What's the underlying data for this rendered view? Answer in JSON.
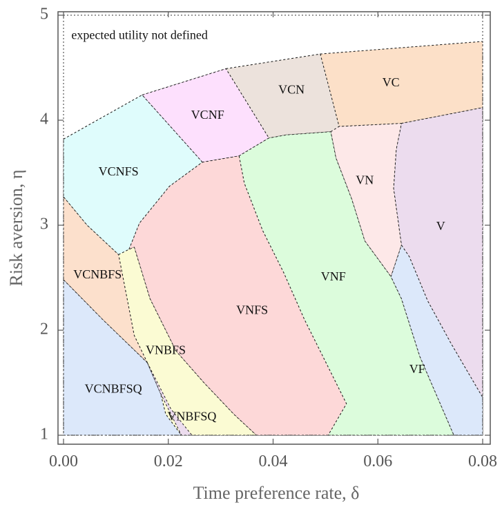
{
  "chart_data": {
    "type": "region-map",
    "xlabel": "Time preference rate, δ",
    "ylabel": "Risk aversion, η",
    "xlim": [
      0.0,
      0.08
    ],
    "ylim": [
      1,
      5
    ],
    "xticks": [
      "0.00",
      "0.02",
      "0.04",
      "0.06",
      "0.08"
    ],
    "yticks": [
      "1",
      "2",
      "3",
      "4",
      "5"
    ],
    "regions": [
      {
        "name": "expected utility not defined",
        "color": "#fdfbd3"
      },
      {
        "name": "VC",
        "color": "#fce0c8"
      },
      {
        "name": "VCN",
        "color": "#ece2dc"
      },
      {
        "name": "VCNF",
        "color": "#fde0fd"
      },
      {
        "name": "VCNFS",
        "color": "#dffcfc"
      },
      {
        "name": "V",
        "color": "#ecdcee"
      },
      {
        "name": "VN",
        "color": "#fde8e8"
      },
      {
        "name": "VNF",
        "color": "#dcfcdc"
      },
      {
        "name": "VNFS",
        "color": "#fdd8d8"
      },
      {
        "name": "VF",
        "color": "#dce8fa"
      },
      {
        "name": "VNBFS",
        "color": "#fbfbd3"
      },
      {
        "name": "VCNBFS",
        "color": "#fce0cc"
      },
      {
        "name": "VCNBFSQ",
        "color": "#dce8fa"
      },
      {
        "name": "VNBFSQ",
        "color": "#ecdcee"
      }
    ]
  }
}
